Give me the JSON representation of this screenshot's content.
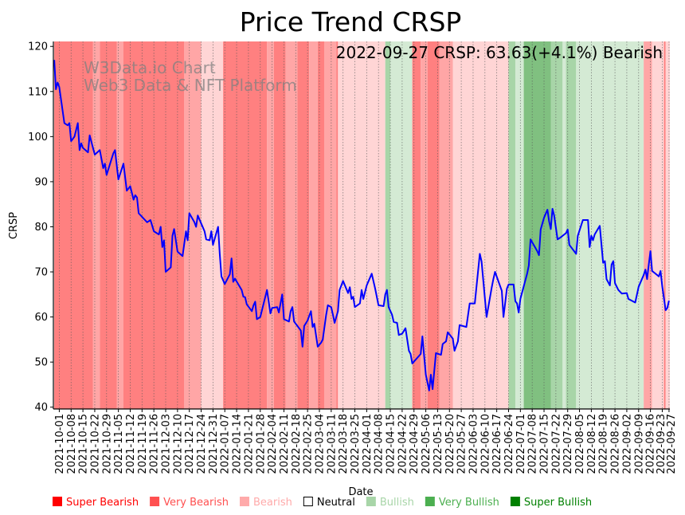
{
  "chart_data": {
    "type": "line",
    "title": "Price Trend CRSP",
    "annotation": "2022-09-27 CRSP: 63.63(+4.1%) Bearish",
    "watermark": [
      "W3Data.io Chart",
      "Web3 Data & NFT Platform"
    ],
    "xlabel": "Date",
    "ylabel": "CRSP",
    "start_date": "2021-09-28",
    "x_unit": "days since start_date",
    "xlim": [
      -0.5,
      364.5
    ],
    "ylim": [
      39.6,
      121.1
    ],
    "yticks": [
      40,
      50,
      60,
      70,
      80,
      90,
      100,
      110,
      120
    ],
    "xtick_days": [
      3,
      10,
      17,
      24,
      31,
      38,
      45,
      52,
      59,
      66,
      73,
      80,
      87,
      94,
      101,
      108,
      115,
      122,
      129,
      136,
      143,
      150,
      157,
      164,
      171,
      178,
      185,
      192,
      199,
      206,
      213,
      220,
      227,
      234,
      241,
      248,
      255,
      262,
      269,
      276,
      283,
      290,
      297,
      304,
      311,
      318,
      325,
      332,
      339,
      346,
      353,
      360,
      364
    ],
    "xtick_labels": [
      "2021-10-01",
      "2021-10-08",
      "2021-10-15",
      "2021-10-22",
      "2021-10-29",
      "2021-11-05",
      "2021-11-12",
      "2021-11-19",
      "2021-11-26",
      "2021-12-03",
      "2021-12-10",
      "2021-12-17",
      "2021-12-24",
      "2021-12-31",
      "2022-01-07",
      "2022-01-14",
      "2022-01-21",
      "2022-01-28",
      "2022-02-04",
      "2022-02-11",
      "2022-02-18",
      "2022-02-25",
      "2022-03-04",
      "2022-03-11",
      "2022-03-18",
      "2022-03-25",
      "2022-04-01",
      "2022-04-08",
      "2022-04-15",
      "2022-04-22",
      "2022-04-29",
      "2022-05-06",
      "2022-05-13",
      "2022-05-20",
      "2022-05-27",
      "2022-06-03",
      "2022-06-10",
      "2022-06-17",
      "2022-06-24",
      "2022-07-01",
      "2022-07-08",
      "2022-07-15",
      "2022-07-22",
      "2022-07-29",
      "2022-08-05",
      "2022-08-12",
      "2022-08-19",
      "2022-08-26",
      "2022-09-02",
      "2022-09-09",
      "2022-09-16",
      "2022-09-23",
      "2022-09-27"
    ],
    "grid": "vertical dotted at x ticks",
    "series": [
      {
        "name": "CRSP",
        "color": "#0000ff",
        "points": [
          [
            0,
            117
          ],
          [
            1,
            110.5
          ],
          [
            2,
            112
          ],
          [
            3,
            111
          ],
          [
            6,
            103
          ],
          [
            8,
            102.5
          ],
          [
            9,
            103
          ],
          [
            10,
            99
          ],
          [
            12,
            100
          ],
          [
            14,
            103
          ],
          [
            15,
            97
          ],
          [
            16,
            98.5
          ],
          [
            17,
            97.5
          ],
          [
            20,
            96.5
          ],
          [
            21,
            100.3
          ],
          [
            24,
            96
          ],
          [
            27,
            97
          ],
          [
            29,
            93
          ],
          [
            30,
            94
          ],
          [
            31,
            91.5
          ],
          [
            35,
            96.3
          ],
          [
            36,
            97
          ],
          [
            38,
            90.5
          ],
          [
            41,
            94
          ],
          [
            43,
            88
          ],
          [
            45,
            89
          ],
          [
            47,
            86
          ],
          [
            48,
            87
          ],
          [
            49,
            86.5
          ],
          [
            50,
            83
          ],
          [
            55,
            81
          ],
          [
            57,
            81.5
          ],
          [
            59,
            79
          ],
          [
            62,
            78.3
          ],
          [
            63,
            80
          ],
          [
            64,
            75.5
          ],
          [
            65,
            77
          ],
          [
            66,
            70
          ],
          [
            69,
            71
          ],
          [
            70,
            78
          ],
          [
            71,
            79.5
          ],
          [
            73,
            74.5
          ],
          [
            76,
            73.5
          ],
          [
            78,
            79
          ],
          [
            79,
            77
          ],
          [
            80,
            83
          ],
          [
            83,
            81
          ],
          [
            84,
            80
          ],
          [
            85,
            82.5
          ],
          [
            89,
            79
          ],
          [
            90,
            77.2
          ],
          [
            92,
            77
          ],
          [
            93,
            79
          ],
          [
            94,
            76
          ],
          [
            97,
            80
          ],
          [
            98,
            74
          ],
          [
            99,
            69
          ],
          [
            101,
            67.3
          ],
          [
            104,
            69.5
          ],
          [
            105,
            73
          ],
          [
            106,
            67.8
          ],
          [
            107,
            68.5
          ],
          [
            111,
            66
          ],
          [
            112,
            64.5
          ],
          [
            113,
            64.4
          ],
          [
            114,
            62.8
          ],
          [
            117,
            61.3
          ],
          [
            118,
            62.6
          ],
          [
            119,
            63.4
          ],
          [
            120,
            59.5
          ],
          [
            122,
            60
          ],
          [
            126,
            66
          ],
          [
            128,
            60.8
          ],
          [
            129,
            62
          ],
          [
            132,
            62.2
          ],
          [
            133,
            61
          ],
          [
            135,
            65
          ],
          [
            136,
            59.5
          ],
          [
            139,
            59
          ],
          [
            140,
            61.3
          ],
          [
            141,
            62.2
          ],
          [
            142,
            59
          ],
          [
            146,
            57
          ],
          [
            147,
            53.4
          ],
          [
            148,
            58
          ],
          [
            150,
            59.2
          ],
          [
            152,
            61.3
          ],
          [
            153,
            57.8
          ],
          [
            154,
            58.5
          ],
          [
            156,
            53.4
          ],
          [
            158,
            54.3
          ],
          [
            159,
            55
          ],
          [
            161,
            60.5
          ],
          [
            162,
            62.6
          ],
          [
            164,
            62.2
          ],
          [
            165,
            60.5
          ],
          [
            166,
            58.7
          ],
          [
            168,
            61.3
          ],
          [
            169,
            66
          ],
          [
            171,
            68
          ],
          [
            174,
            65.3
          ],
          [
            175,
            66.6
          ],
          [
            176,
            64
          ],
          [
            177,
            64.5
          ],
          [
            178,
            62.2
          ],
          [
            181,
            63
          ],
          [
            182,
            66
          ],
          [
            183,
            64
          ],
          [
            185,
            67
          ],
          [
            188,
            69.6
          ],
          [
            190,
            66.3
          ],
          [
            192,
            62.6
          ],
          [
            195,
            62.4
          ],
          [
            196,
            65
          ],
          [
            197,
            66
          ],
          [
            198,
            62.2
          ],
          [
            200,
            60.5
          ],
          [
            201,
            58.9
          ],
          [
            203,
            58.7
          ],
          [
            204,
            56
          ],
          [
            206,
            56.3
          ],
          [
            208,
            57.5
          ],
          [
            210,
            52.5
          ],
          [
            211,
            51.8
          ],
          [
            212,
            49.7
          ],
          [
            217,
            51.8
          ],
          [
            218,
            55.7
          ],
          [
            220,
            47.2
          ],
          [
            222,
            43.7
          ],
          [
            223,
            47.2
          ],
          [
            224,
            44
          ],
          [
            226,
            52
          ],
          [
            229,
            51.6
          ],
          [
            230,
            54
          ],
          [
            232,
            54.6
          ],
          [
            233,
            56.6
          ],
          [
            236,
            55.2
          ],
          [
            237,
            52.5
          ],
          [
            239,
            54.6
          ],
          [
            240,
            58.2
          ],
          [
            244,
            57.8
          ],
          [
            246,
            63
          ],
          [
            249,
            63
          ],
          [
            252,
            74
          ],
          [
            253,
            72.3
          ],
          [
            256,
            60
          ],
          [
            259,
            66.5
          ],
          [
            260,
            68.4
          ],
          [
            261,
            70
          ],
          [
            265,
            65.8
          ],
          [
            266,
            60
          ],
          [
            268,
            66.3
          ],
          [
            269,
            67.2
          ],
          [
            272,
            67.2
          ],
          [
            273,
            63.5
          ],
          [
            274,
            63
          ],
          [
            275,
            61
          ],
          [
            276,
            64
          ],
          [
            280,
            69.6
          ],
          [
            281,
            71.4
          ],
          [
            282,
            77.2
          ],
          [
            286,
            74.6
          ],
          [
            287,
            73.7
          ],
          [
            288,
            79.4
          ],
          [
            290,
            82
          ],
          [
            292,
            83.8
          ],
          [
            293,
            81.2
          ],
          [
            294,
            79.5
          ],
          [
            295,
            84
          ],
          [
            296,
            82.5
          ],
          [
            298,
            77.2
          ],
          [
            300,
            77.7
          ],
          [
            303,
            78.6
          ],
          [
            304,
            79.4
          ],
          [
            305,
            76
          ],
          [
            307,
            75
          ],
          [
            309,
            74
          ],
          [
            310,
            78
          ],
          [
            313,
            81.5
          ],
          [
            316,
            81.5
          ],
          [
            317,
            75.5
          ],
          [
            318,
            78
          ],
          [
            319,
            77
          ],
          [
            320,
            78.3
          ],
          [
            323,
            80.2
          ],
          [
            325,
            72
          ],
          [
            326,
            72.4
          ],
          [
            327,
            68.4
          ],
          [
            329,
            67
          ],
          [
            330,
            71.6
          ],
          [
            331,
            72.4
          ],
          [
            332,
            67.5
          ],
          [
            334,
            66
          ],
          [
            336,
            65.2
          ],
          [
            339,
            65.3
          ],
          [
            340,
            64
          ],
          [
            344,
            63.2
          ],
          [
            346,
            66.7
          ],
          [
            349,
            69.3
          ],
          [
            350,
            70.5
          ],
          [
            351,
            68.4
          ],
          [
            352,
            71.6
          ],
          [
            353,
            74.6
          ],
          [
            354,
            70.2
          ],
          [
            358,
            69
          ],
          [
            359,
            70.2
          ],
          [
            360,
            66.7
          ],
          [
            362,
            61.5
          ],
          [
            363,
            62
          ],
          [
            364,
            63.63
          ]
        ]
      }
    ],
    "regimes": [
      [
        0,
        23,
        "super_bearish"
      ],
      [
        23,
        27,
        "very_bearish"
      ],
      [
        27,
        37,
        "super_bearish"
      ],
      [
        37,
        41,
        "very_bearish"
      ],
      [
        41,
        77,
        "super_bearish"
      ],
      [
        77,
        87,
        "very_bearish"
      ],
      [
        87,
        100,
        "bearish"
      ],
      [
        100,
        126,
        "super_bearish"
      ],
      [
        126,
        130,
        "very_bearish"
      ],
      [
        130,
        137,
        "super_bearish"
      ],
      [
        137,
        144,
        "very_bearish"
      ],
      [
        144,
        151,
        "super_bearish"
      ],
      [
        151,
        156,
        "very_bearish"
      ],
      [
        156,
        160,
        "super_bearish"
      ],
      [
        160,
        167,
        "very_bearish"
      ],
      [
        167,
        168,
        "super_bearish"
      ],
      [
        168,
        196,
        "bearish"
      ],
      [
        196,
        199,
        "very_bullish"
      ],
      [
        199,
        212,
        "bullish"
      ],
      [
        212,
        217,
        "super_bearish"
      ],
      [
        217,
        221,
        "very_bearish"
      ],
      [
        221,
        228,
        "super_bearish"
      ],
      [
        228,
        236,
        "very_bearish"
      ],
      [
        236,
        269,
        "bearish"
      ],
      [
        269,
        273,
        "very_bullish"
      ],
      [
        273,
        278,
        "bullish"
      ],
      [
        278,
        294,
        "super_bullish"
      ],
      [
        294,
        301,
        "very_bullish"
      ],
      [
        301,
        303,
        "bullish"
      ],
      [
        303,
        309,
        "very_bullish"
      ],
      [
        309,
        349,
        "bullish"
      ],
      [
        349,
        354,
        "very_bearish"
      ],
      [
        354,
        361,
        "bearish"
      ],
      [
        361,
        362,
        "super_bearish"
      ],
      [
        362,
        364.5,
        "bearish"
      ]
    ],
    "regime_colors": {
      "super_bearish": "#ff8080",
      "very_bearish": "#ffa6a6",
      "bearish": "#ffd5d5",
      "neutral": "#ffffff",
      "bullish": "#d4ead4",
      "very_bullish": "#a8d5a8",
      "super_bullish": "#80c080"
    },
    "legend": {
      "placement": "bottom",
      "items": [
        {
          "key": "super_bearish",
          "label": "Super Bearish",
          "color": "#ff0000"
        },
        {
          "key": "very_bearish",
          "label": "Very Bearish",
          "color": "#ff5050"
        },
        {
          "key": "bearish",
          "label": "Bearish",
          "color": "#ffaaaa"
        },
        {
          "key": "neutral",
          "label": "Neutral",
          "color": "#000000"
        },
        {
          "key": "bullish",
          "label": "Bullish",
          "color": "#a8d5a8"
        },
        {
          "key": "very_bullish",
          "label": "Very Bullish",
          "color": "#4caf50"
        },
        {
          "key": "super_bullish",
          "label": "Super Bullish",
          "color": "#008000"
        }
      ]
    }
  }
}
